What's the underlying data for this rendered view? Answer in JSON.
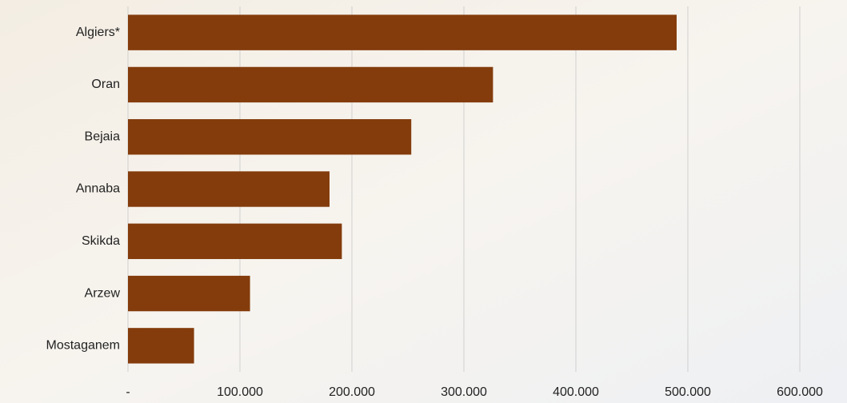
{
  "chart_data": {
    "type": "bar",
    "orientation": "horizontal",
    "categories": [
      "Algiers*",
      "Oran",
      "Bejaia",
      "Annaba",
      "Skikda",
      "Arzew",
      "Mostaganem"
    ],
    "values": [
      490000,
      326000,
      253000,
      180000,
      191000,
      109000,
      59000
    ],
    "color": "#843c0c",
    "xlim": [
      0,
      600000
    ],
    "xticks": [
      {
        "value": 0,
        "label": "-"
      },
      {
        "value": 100000,
        "label": "100.000"
      },
      {
        "value": 200000,
        "label": "200.000"
      },
      {
        "value": 300000,
        "label": "300.000"
      },
      {
        "value": 400000,
        "label": "400.000"
      },
      {
        "value": 500000,
        "label": "500.000"
      },
      {
        "value": 600000,
        "label": "600.000"
      }
    ],
    "grid": true
  }
}
